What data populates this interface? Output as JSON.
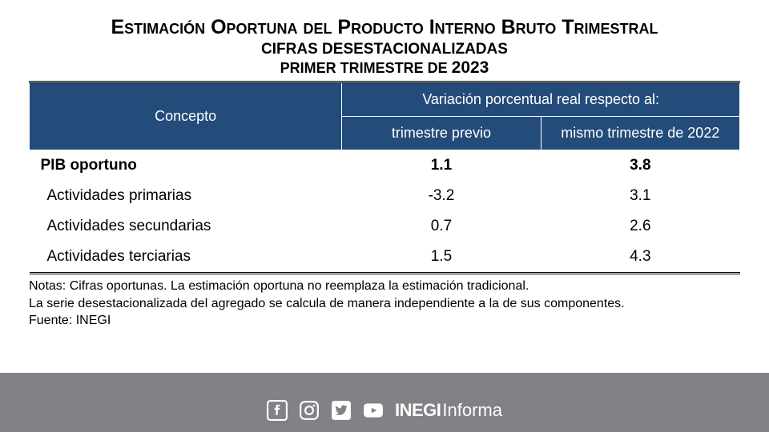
{
  "header": {
    "title_main": "Estimación Oportuna del Producto Interno Bruto Trimestral",
    "title_sub": "CIFRAS DESESTACIONALIZADAS",
    "period_prefix": "PRIMER TRIMESTRE DE ",
    "period_year": "2023"
  },
  "table": {
    "colors": {
      "header_bg": "#234c7a",
      "header_text": "#ffffff"
    },
    "columns": {
      "concept": "Concepto",
      "group": "Variación porcentual real respecto al:",
      "prev": "trimestre previo",
      "same": "mismo trimestre de 2022"
    },
    "rows": [
      {
        "label": "PIB oportuno",
        "prev": "1.1",
        "same": "3.8",
        "bold": true,
        "indent": false
      },
      {
        "label": "Actividades primarias",
        "prev": "-3.2",
        "same": "3.1",
        "bold": false,
        "indent": true
      },
      {
        "label": "Actividades secundarias",
        "prev": "0.7",
        "same": "2.6",
        "bold": false,
        "indent": true
      },
      {
        "label": "Actividades terciarias",
        "prev": "1.5",
        "same": "4.3",
        "bold": false,
        "indent": true
      }
    ]
  },
  "notes": {
    "line1": "Notas: Cifras oportunas. La estimación oportuna no reemplaza la estimación tradicional.",
    "line2": "La serie desestacionalizada del agregado se calcula de manera independiente a la de sus componentes.",
    "line3": "Fuente: INEGI"
  },
  "footer": {
    "brand_bold": "INEGI",
    "brand_light": "Informa",
    "icons": [
      "facebook-icon",
      "instagram-icon",
      "twitter-icon",
      "youtube-icon"
    ]
  }
}
